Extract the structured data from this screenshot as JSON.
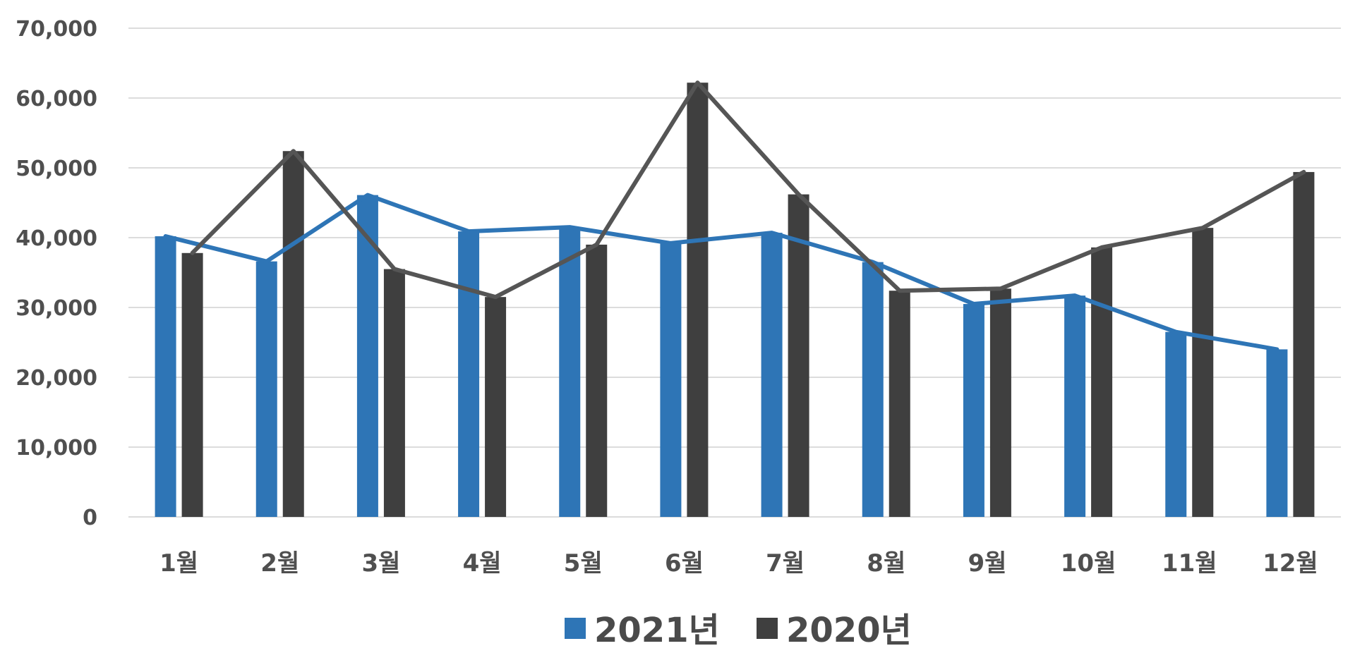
{
  "chart_data": {
    "type": "bar",
    "title": "",
    "xlabel": "",
    "ylabel": "",
    "ylim": [
      0,
      70000
    ],
    "yticks": [
      0,
      10000,
      20000,
      30000,
      40000,
      50000,
      60000,
      70000
    ],
    "ytick_labels": [
      "0",
      "10,000",
      "20,000",
      "30,000",
      "40,000",
      "50,000",
      "60,000",
      "70,000"
    ],
    "categories": [
      "1월",
      "2월",
      "3월",
      "4월",
      "5월",
      "6월",
      "7월",
      "8월",
      "9월",
      "10월",
      "11월",
      "12월"
    ],
    "grid": true,
    "legend_position": "bottom",
    "series": [
      {
        "name": "2021년",
        "color": "#2e75b6",
        "values": [
          40200,
          36600,
          46100,
          40900,
          41500,
          39200,
          40700,
          36500,
          30500,
          31700,
          26500,
          24000
        ]
      },
      {
        "name": "2020년",
        "color": "#3f3f3f",
        "values": [
          37800,
          52400,
          35500,
          31500,
          39000,
          62200,
          46200,
          32400,
          32700,
          38600,
          41400,
          49400
        ]
      }
    ],
    "overlay_lines": "each series also drawn as a line through bar tops"
  },
  "legend": {
    "items": [
      {
        "label": "2021년",
        "color": "#2e75b6"
      },
      {
        "label": "2020년",
        "color": "#3f3f3f"
      }
    ]
  }
}
